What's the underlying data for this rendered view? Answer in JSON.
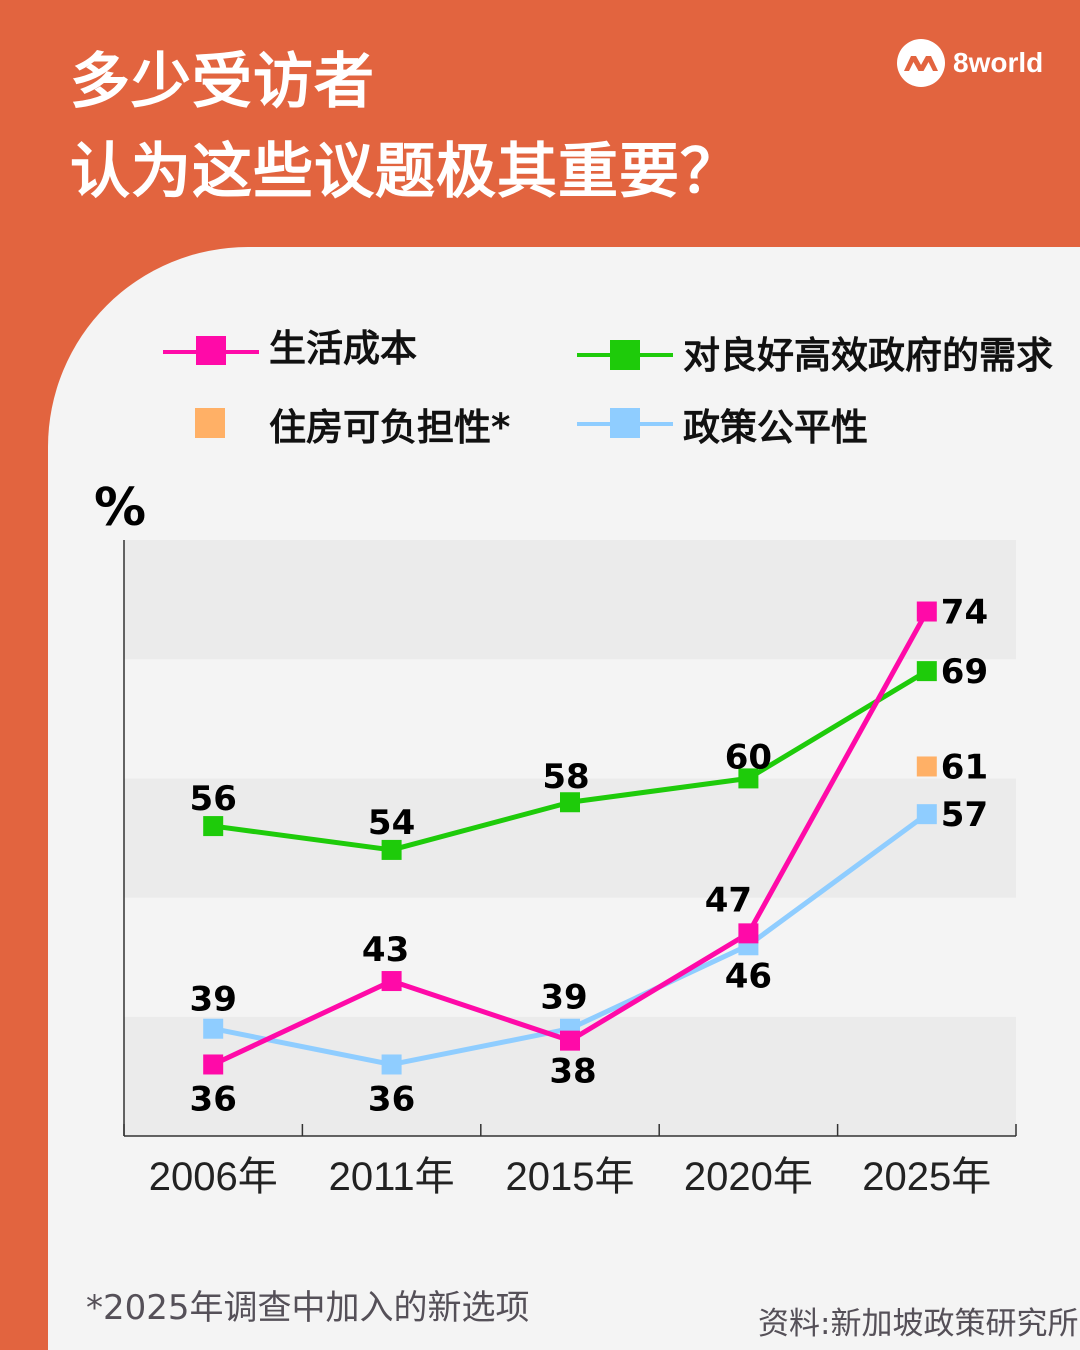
{
  "header": {
    "title_line1": "多少受访者",
    "title_line2": "认为这些议题极其重要？",
    "logo_text": "8world"
  },
  "chart_data": {
    "type": "line",
    "title": "多少受访者认为这些议题极其重要？",
    "ylabel": "%",
    "xlabel": "",
    "ylim": [
      30,
      80
    ],
    "bands": "alternating shaded every 10 units",
    "categories": [
      "2006年",
      "2011年",
      "2015年",
      "2020年",
      "2025年"
    ],
    "legend_placement": "top",
    "series": [
      {
        "name": "生活成本",
        "color": "#ff0aa8",
        "values": [
          36,
          43,
          38,
          47,
          74
        ]
      },
      {
        "name": "对良好高效政府的需求",
        "color": "#1ecb0a",
        "values": [
          56,
          54,
          58,
          60,
          69
        ]
      },
      {
        "name": "住房可负担性*",
        "color": "#ffb066",
        "values": [
          null,
          null,
          null,
          null,
          61
        ]
      },
      {
        "name": "政策公平性",
        "color": "#8fcdff",
        "values": [
          39,
          36,
          39,
          46,
          57
        ]
      }
    ]
  },
  "footnote": "*2025年调查中加入的新选项",
  "source": "资料:新加坡政策研究所"
}
